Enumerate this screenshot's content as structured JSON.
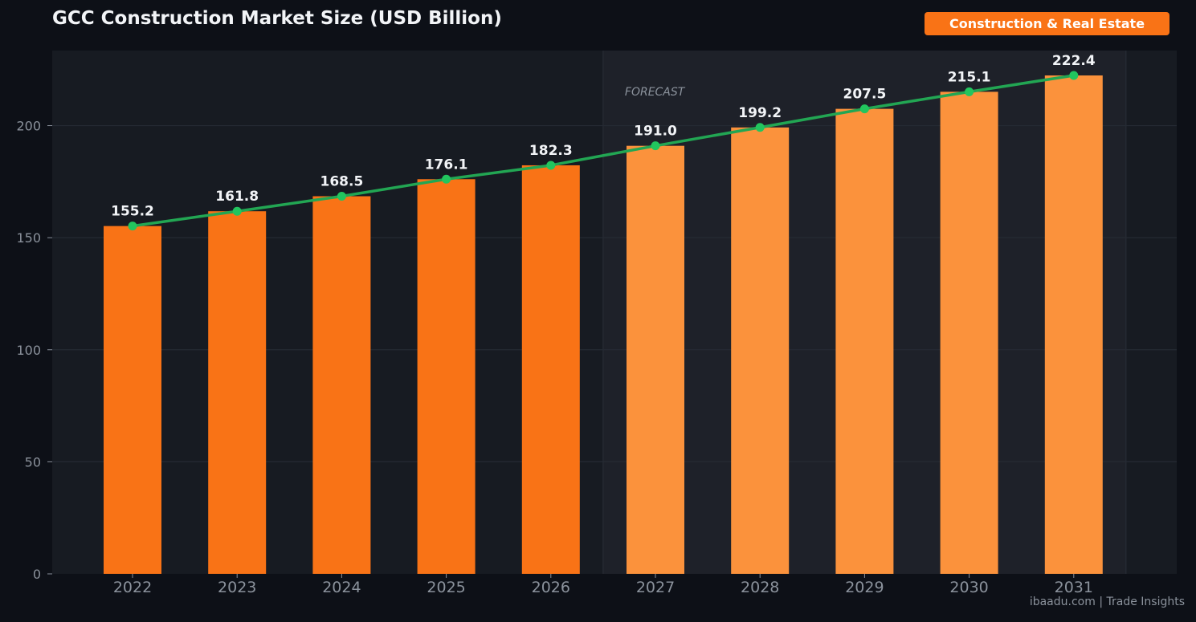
{
  "header": {
    "title": "GCC Construction Market Size (USD Billion)",
    "badge": "Construction & Real Estate"
  },
  "footer": {
    "watermark": "ibaadu.com | Trade Insights"
  },
  "colors": {
    "background": "#0d1017",
    "plot_background": "#171b22",
    "forecast_background": "#1e2129",
    "bar_actual": "#f97316",
    "bar_forecast": "#fb923c",
    "trend_line": "#22a653",
    "trend_point": "#22c55e",
    "label": "#f2f4f7",
    "tick": "#8b929c",
    "grid": "#252a33"
  },
  "chart_data": {
    "type": "bar",
    "title": "GCC Construction Market Size (USD Billion)",
    "xlabel": "",
    "ylabel": "",
    "categories": [
      "2022",
      "2023",
      "2024",
      "2025",
      "2026",
      "2027",
      "2028",
      "2029",
      "2030",
      "2031"
    ],
    "values": [
      155.2,
      161.8,
      168.5,
      176.1,
      182.3,
      191.0,
      199.2,
      207.5,
      215.1,
      222.4
    ],
    "value_labels": [
      "155.2",
      "161.8",
      "168.5",
      "176.1",
      "182.3",
      "191.0",
      "199.2",
      "207.5",
      "215.1",
      "222.4"
    ],
    "forecast_start_index": 5,
    "forecast_label": "FORECAST",
    "trend_line": true,
    "ylim": [
      0,
      233.5
    ],
    "yticks": [
      0,
      50,
      100,
      150,
      200
    ],
    "ytick_labels": [
      "0",
      "50",
      "100",
      "150",
      "200"
    ],
    "grid": true
  }
}
